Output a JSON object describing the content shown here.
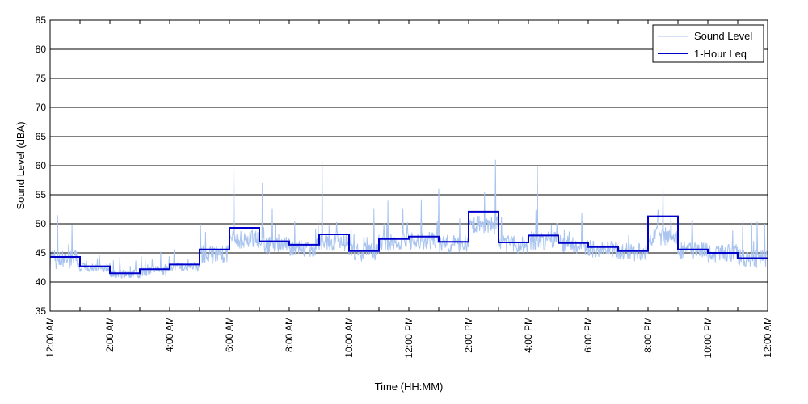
{
  "chart_data": {
    "type": "line",
    "xlabel": "Time (HH:MM)",
    "ylabel": "Sound Level (dBA)",
    "ylim": [
      35,
      85
    ],
    "yticks": [
      35,
      40,
      45,
      50,
      55,
      60,
      65,
      70,
      75,
      80,
      85
    ],
    "xlim": [
      0,
      24
    ],
    "xticks": [
      0,
      2,
      4,
      6,
      8,
      10,
      12,
      14,
      16,
      18,
      20,
      22,
      24
    ],
    "xtick_labels": [
      "12:00 AM",
      "2:00 AM",
      "4:00 AM",
      "6:00 AM",
      "8:00 AM",
      "10:00 AM",
      "12:00 PM",
      "2:00 PM",
      "4:00 PM",
      "6:00 PM",
      "8:00 PM",
      "10:00 PM",
      "12:00 AM"
    ],
    "grid": "horizontal",
    "legend_position": "top-right",
    "series": [
      {
        "name": "Sound Level",
        "color": "#a9c4ef",
        "style": "thin line, 1-minute samples (approximated)",
        "hourly_mean_dBA": [
          43.5,
          42.3,
          41.2,
          41.8,
          42.5,
          44.5,
          47.0,
          46.0,
          45.5,
          46.5,
          44.8,
          46.5,
          46.8,
          46.2,
          49.5,
          46.2,
          46.8,
          46.0,
          45.3,
          44.8,
          47.5,
          45.2,
          44.6,
          43.8
        ],
        "peaks": [
          [
            0.25,
            51.5
          ],
          [
            6.15,
            60
          ],
          [
            7.1,
            57
          ],
          [
            9.1,
            60.5
          ],
          [
            11.3,
            54
          ],
          [
            13.0,
            56
          ],
          [
            14.9,
            61
          ],
          [
            16.3,
            60
          ],
          [
            20.5,
            56.5
          ],
          [
            23.9,
            50
          ]
        ]
      },
      {
        "name": "1-Hour Leq",
        "color": "#0000cc",
        "style": "step",
        "values": [
          44.3,
          42.7,
          41.5,
          42.2,
          43.0,
          45.6,
          49.3,
          47.0,
          46.4,
          48.2,
          45.3,
          47.4,
          47.8,
          46.9,
          52.1,
          46.8,
          48.0,
          46.7,
          46.0,
          45.3,
          51.3,
          45.6,
          45.0,
          44.1
        ]
      }
    ]
  }
}
